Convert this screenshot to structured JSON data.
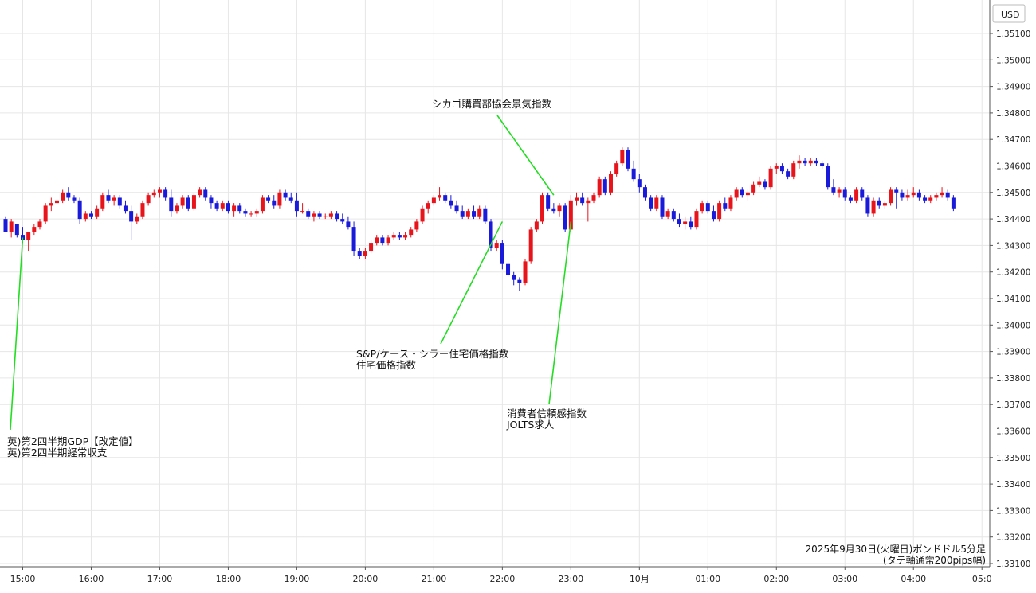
{
  "chart_data": {
    "type": "candlestick",
    "currency_label": "USD",
    "caption_line1": "2025年9月30日(火曜日)ポンドドル5分足",
    "caption_line2": "(タテ軸通常200pips幅)",
    "ylim": [
      1.331,
      1.3515
    ],
    "y_ticks": [
      "1.35100",
      "1.35000",
      "1.34900",
      "1.34800",
      "1.34700",
      "1.34600",
      "1.34500",
      "1.34400",
      "1.34300",
      "1.34200",
      "1.34100",
      "1.34000",
      "1.33900",
      "1.33800",
      "1.33700",
      "1.33600",
      "1.33500",
      "1.33400",
      "1.33300",
      "1.33200",
      "1.33100"
    ],
    "x_ticks": [
      {
        "label": "15:00",
        "bar": 3
      },
      {
        "label": "16:00",
        "bar": 15
      },
      {
        "label": "17:00",
        "bar": 27
      },
      {
        "label": "18:00",
        "bar": 39
      },
      {
        "label": "19:00",
        "bar": 51
      },
      {
        "label": "20:00",
        "bar": 63
      },
      {
        "label": "21:00",
        "bar": 75
      },
      {
        "label": "22:00",
        "bar": 87
      },
      {
        "label": "23:00",
        "bar": 99
      },
      {
        "label": "10月",
        "bar": 111
      },
      {
        "label": "01:00",
        "bar": 123
      },
      {
        "label": "02:00",
        "bar": 135
      },
      {
        "label": "03:00",
        "bar": 147
      },
      {
        "label": "04:00",
        "bar": 159
      },
      {
        "label": "05:0",
        "bar": 171
      }
    ],
    "up_color": "#e8141c",
    "down_color": "#1a1adb",
    "annotation_color": "#22dd22",
    "annotations": [
      {
        "lines": [
          "英)第2四半期GDP【改定値】",
          "英)第2四半期経常収支"
        ],
        "bar": 3,
        "price": 1.3433,
        "align": "start"
      },
      {
        "lines": [
          "シカゴ購買部協会景気指数"
        ],
        "bar": 96,
        "price": 1.3449,
        "align": "middle"
      },
      {
        "lines": [
          "S&P/ケース・シラー住宅価格指数",
          "住宅価格指数"
        ],
        "bar": 87,
        "price": 1.3439,
        "align": "start"
      },
      {
        "lines": [
          "消費者信頼感指数",
          "JOLTS求人"
        ],
        "bar": 99,
        "price": 1.3439,
        "align": "start"
      }
    ],
    "candles": [
      [
        1.344,
        1.3441,
        1.3435,
        1.3435
      ],
      [
        1.3435,
        1.344,
        1.3433,
        1.3439
      ],
      [
        1.3438,
        1.3438,
        1.3433,
        1.3434
      ],
      [
        1.3434,
        1.3437,
        1.3431,
        1.3432
      ],
      [
        1.3432,
        1.3435,
        1.3428,
        1.3435
      ],
      [
        1.3435,
        1.3438,
        1.3434,
        1.3437
      ],
      [
        1.3437,
        1.344,
        1.3436,
        1.3439
      ],
      [
        1.3439,
        1.3446,
        1.3438,
        1.3445
      ],
      [
        1.3445,
        1.3448,
        1.3443,
        1.3446
      ],
      [
        1.3446,
        1.3449,
        1.3445,
        1.3447
      ],
      [
        1.3447,
        1.3451,
        1.3446,
        1.345
      ],
      [
        1.345,
        1.3452,
        1.3447,
        1.3448
      ],
      [
        1.3448,
        1.3449,
        1.3446,
        1.3447
      ],
      [
        1.3447,
        1.3448,
        1.3438,
        1.344
      ],
      [
        1.344,
        1.3443,
        1.3439,
        1.3442
      ],
      [
        1.3442,
        1.3443,
        1.344,
        1.3441
      ],
      [
        1.3441,
        1.3445,
        1.344,
        1.3444
      ],
      [
        1.3444,
        1.345,
        1.3443,
        1.3449
      ],
      [
        1.3449,
        1.3451,
        1.3446,
        1.3447
      ],
      [
        1.3447,
        1.3449,
        1.3445,
        1.3448
      ],
      [
        1.3448,
        1.3449,
        1.3444,
        1.3445
      ],
      [
        1.3445,
        1.3447,
        1.3442,
        1.3443
      ],
      [
        1.3443,
        1.3445,
        1.3432,
        1.3439
      ],
      [
        1.3439,
        1.3442,
        1.3438,
        1.3441
      ],
      [
        1.3441,
        1.3447,
        1.344,
        1.3446
      ],
      [
        1.3446,
        1.345,
        1.3445,
        1.3449
      ],
      [
        1.3449,
        1.3451,
        1.3448,
        1.345
      ],
      [
        1.345,
        1.3452,
        1.3448,
        1.3451
      ],
      [
        1.3451,
        1.3452,
        1.3447,
        1.3448
      ],
      [
        1.3448,
        1.3451,
        1.3441,
        1.3443
      ],
      [
        1.3443,
        1.3446,
        1.3442,
        1.3445
      ],
      [
        1.3445,
        1.3449,
        1.3444,
        1.3448
      ],
      [
        1.3448,
        1.3449,
        1.3443,
        1.3444
      ],
      [
        1.3444,
        1.345,
        1.3443,
        1.3449
      ],
      [
        1.3449,
        1.3452,
        1.3448,
        1.3451
      ],
      [
        1.3451,
        1.3452,
        1.3447,
        1.3448
      ],
      [
        1.3448,
        1.3449,
        1.3444,
        1.3446
      ],
      [
        1.3446,
        1.3447,
        1.3443,
        1.3444
      ],
      [
        1.3444,
        1.3447,
        1.3443,
        1.3446
      ],
      [
        1.3446,
        1.3447,
        1.3442,
        1.3443
      ],
      [
        1.3443,
        1.3446,
        1.3441,
        1.3445
      ],
      [
        1.3445,
        1.3446,
        1.3442,
        1.3443
      ],
      [
        1.3443,
        1.3444,
        1.3441,
        1.3442
      ],
      [
        1.3442,
        1.3443,
        1.3441,
        1.3442
      ],
      [
        1.3442,
        1.3444,
        1.3441,
        1.3443
      ],
      [
        1.3443,
        1.3449,
        1.3442,
        1.3448
      ],
      [
        1.3448,
        1.3449,
        1.3446,
        1.3447
      ],
      [
        1.3447,
        1.3449,
        1.3444,
        1.3445
      ],
      [
        1.3445,
        1.3451,
        1.3444,
        1.345
      ],
      [
        1.345,
        1.3451,
        1.3447,
        1.3448
      ],
      [
        1.3448,
        1.345,
        1.3446,
        1.3447
      ],
      [
        1.3447,
        1.345,
        1.3441,
        1.3443
      ],
      [
        1.3443,
        1.3446,
        1.3442,
        1.3443
      ],
      [
        1.3443,
        1.3444,
        1.344,
        1.3441
      ],
      [
        1.3441,
        1.3443,
        1.3439,
        1.3442
      ],
      [
        1.3442,
        1.3443,
        1.344,
        1.3441
      ],
      [
        1.3441,
        1.3442,
        1.344,
        1.3441
      ],
      [
        1.3441,
        1.3443,
        1.344,
        1.3442
      ],
      [
        1.3442,
        1.3443,
        1.3439,
        1.344
      ],
      [
        1.344,
        1.3442,
        1.3438,
        1.3439
      ],
      [
        1.3439,
        1.3441,
        1.3436,
        1.3437
      ],
      [
        1.3437,
        1.3439,
        1.3426,
        1.3428
      ],
      [
        1.3428,
        1.3429,
        1.3425,
        1.3426
      ],
      [
        1.3426,
        1.3429,
        1.3425,
        1.3428
      ],
      [
        1.3428,
        1.3432,
        1.3427,
        1.3431
      ],
      [
        1.3431,
        1.3434,
        1.343,
        1.3433
      ],
      [
        1.3433,
        1.3434,
        1.343,
        1.3431
      ],
      [
        1.3431,
        1.3434,
        1.343,
        1.3433
      ],
      [
        1.3433,
        1.3435,
        1.3432,
        1.3434
      ],
      [
        1.3434,
        1.3435,
        1.3432,
        1.3433
      ],
      [
        1.3433,
        1.3435,
        1.3432,
        1.3434
      ],
      [
        1.3434,
        1.3437,
        1.3433,
        1.3436
      ],
      [
        1.3436,
        1.344,
        1.3435,
        1.3439
      ],
      [
        1.3439,
        1.3445,
        1.3438,
        1.3444
      ],
      [
        1.3444,
        1.3447,
        1.3442,
        1.3446
      ],
      [
        1.3446,
        1.3449,
        1.3445,
        1.3448
      ],
      [
        1.3448,
        1.3452,
        1.3447,
        1.3449
      ],
      [
        1.3449,
        1.345,
        1.3446,
        1.3447
      ],
      [
        1.3447,
        1.3449,
        1.3444,
        1.3445
      ],
      [
        1.3445,
        1.3447,
        1.3442,
        1.3443
      ],
      [
        1.3443,
        1.3445,
        1.344,
        1.3441
      ],
      [
        1.3441,
        1.3444,
        1.344,
        1.3443
      ],
      [
        1.3443,
        1.3445,
        1.344,
        1.3441
      ],
      [
        1.3441,
        1.3445,
        1.344,
        1.3444
      ],
      [
        1.3444,
        1.3445,
        1.3438,
        1.3439
      ],
      [
        1.3439,
        1.344,
        1.3428,
        1.3429
      ],
      [
        1.3429,
        1.3432,
        1.3428,
        1.3431
      ],
      [
        1.3431,
        1.3432,
        1.3421,
        1.3423
      ],
      [
        1.3423,
        1.3424,
        1.3418,
        1.3419
      ],
      [
        1.3419,
        1.342,
        1.3415,
        1.3417
      ],
      [
        1.3417,
        1.3418,
        1.3413,
        1.3416
      ],
      [
        1.3416,
        1.3425,
        1.3415,
        1.3424
      ],
      [
        1.3424,
        1.3437,
        1.3423,
        1.3436
      ],
      [
        1.3436,
        1.344,
        1.3435,
        1.3439
      ],
      [
        1.3439,
        1.345,
        1.3438,
        1.3449
      ],
      [
        1.3449,
        1.345,
        1.3443,
        1.3444
      ],
      [
        1.3444,
        1.3446,
        1.3442,
        1.3443
      ],
      [
        1.3443,
        1.3446,
        1.3441,
        1.3445
      ],
      [
        1.3445,
        1.3446,
        1.3435,
        1.3436
      ],
      [
        1.3436,
        1.3449,
        1.3435,
        1.3447
      ],
      [
        1.3447,
        1.345,
        1.3445,
        1.3448
      ],
      [
        1.3448,
        1.345,
        1.3445,
        1.3446
      ],
      [
        1.3446,
        1.3448,
        1.3439,
        1.3447
      ],
      [
        1.3447,
        1.345,
        1.3446,
        1.3449
      ],
      [
        1.3449,
        1.3456,
        1.3448,
        1.3455
      ],
      [
        1.3455,
        1.3456,
        1.3449,
        1.345
      ],
      [
        1.345,
        1.3458,
        1.3449,
        1.3457
      ],
      [
        1.3457,
        1.3462,
        1.3456,
        1.3461
      ],
      [
        1.3461,
        1.3467,
        1.346,
        1.3466
      ],
      [
        1.3466,
        1.3467,
        1.3458,
        1.3459
      ],
      [
        1.3459,
        1.3462,
        1.3454,
        1.3455
      ],
      [
        1.3455,
        1.3457,
        1.345,
        1.3452
      ],
      [
        1.3452,
        1.3453,
        1.3447,
        1.3448
      ],
      [
        1.3448,
        1.3449,
        1.3443,
        1.3444
      ],
      [
        1.3444,
        1.3449,
        1.3443,
        1.3448
      ],
      [
        1.3448,
        1.3449,
        1.344,
        1.3441
      ],
      [
        1.3441,
        1.3444,
        1.344,
        1.3443
      ],
      [
        1.3443,
        1.3444,
        1.3439,
        1.344
      ],
      [
        1.344,
        1.3442,
        1.3437,
        1.3438
      ],
      [
        1.3438,
        1.3441,
        1.3436,
        1.3439
      ],
      [
        1.3439,
        1.3441,
        1.3436,
        1.3437
      ],
      [
        1.3437,
        1.3444,
        1.3436,
        1.3443
      ],
      [
        1.3443,
        1.3447,
        1.3442,
        1.3446
      ],
      [
        1.3446,
        1.3447,
        1.3442,
        1.3443
      ],
      [
        1.3443,
        1.3445,
        1.3439,
        1.344
      ],
      [
        1.344,
        1.3447,
        1.3439,
        1.3446
      ],
      [
        1.3446,
        1.3448,
        1.3443,
        1.3444
      ],
      [
        1.3444,
        1.3449,
        1.3443,
        1.3448
      ],
      [
        1.3448,
        1.3452,
        1.3447,
        1.3451
      ],
      [
        1.3451,
        1.3452,
        1.3448,
        1.3449
      ],
      [
        1.3449,
        1.3451,
        1.3447,
        1.345
      ],
      [
        1.345,
        1.3454,
        1.3449,
        1.3453
      ],
      [
        1.3453,
        1.3456,
        1.3452,
        1.3454
      ],
      [
        1.3454,
        1.3455,
        1.3451,
        1.3452
      ],
      [
        1.3452,
        1.346,
        1.3451,
        1.3459
      ],
      [
        1.3459,
        1.3461,
        1.3457,
        1.346
      ],
      [
        1.346,
        1.3461,
        1.3457,
        1.3458
      ],
      [
        1.3458,
        1.3459,
        1.3455,
        1.3456
      ],
      [
        1.3456,
        1.3462,
        1.3455,
        1.3461
      ],
      [
        1.3461,
        1.3464,
        1.3459,
        1.3462
      ],
      [
        1.3462,
        1.3463,
        1.346,
        1.3461
      ],
      [
        1.3461,
        1.3463,
        1.346,
        1.3462
      ],
      [
        1.3462,
        1.3463,
        1.346,
        1.3461
      ],
      [
        1.3461,
        1.3462,
        1.3459,
        1.346
      ],
      [
        1.346,
        1.3461,
        1.3451,
        1.3452
      ],
      [
        1.3452,
        1.3455,
        1.3449,
        1.345
      ],
      [
        1.345,
        1.3452,
        1.3448,
        1.3451
      ],
      [
        1.3451,
        1.3452,
        1.3447,
        1.3448
      ],
      [
        1.3448,
        1.3449,
        1.3446,
        1.3447
      ],
      [
        1.3447,
        1.3452,
        1.3446,
        1.3451
      ],
      [
        1.3451,
        1.3452,
        1.3447,
        1.3448
      ],
      [
        1.3448,
        1.3449,
        1.3441,
        1.3442
      ],
      [
        1.3442,
        1.3448,
        1.3441,
        1.3447
      ],
      [
        1.3447,
        1.3448,
        1.3444,
        1.3445
      ],
      [
        1.3445,
        1.3447,
        1.3444,
        1.3446
      ],
      [
        1.3446,
        1.3452,
        1.3445,
        1.3451
      ],
      [
        1.3451,
        1.3452,
        1.3444,
        1.345
      ],
      [
        1.345,
        1.3451,
        1.3447,
        1.3448
      ],
      [
        1.3448,
        1.3451,
        1.3447,
        1.3449
      ],
      [
        1.3449,
        1.3452,
        1.3448,
        1.345
      ],
      [
        1.345,
        1.3451,
        1.3447,
        1.3448
      ],
      [
        1.3448,
        1.3449,
        1.3446,
        1.3447
      ],
      [
        1.3447,
        1.3449,
        1.3446,
        1.3448
      ],
      [
        1.3448,
        1.345,
        1.3447,
        1.3449
      ],
      [
        1.3449,
        1.3452,
        1.3448,
        1.345
      ],
      [
        1.345,
        1.3451,
        1.3447,
        1.3448
      ],
      [
        1.3448,
        1.3449,
        1.3443,
        1.3444
      ]
    ]
  }
}
